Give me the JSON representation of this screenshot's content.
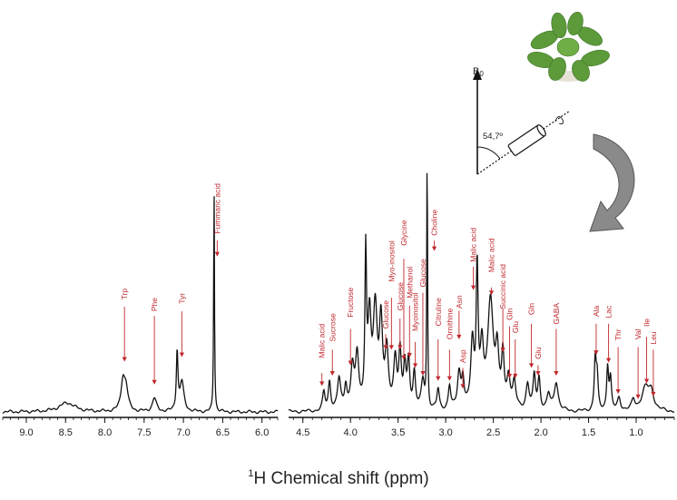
{
  "figure": {
    "xlabel_sup": "1",
    "xlabel_main": "H Chemical shift (ppm)",
    "b0_main": "B",
    "b0_sub": "0",
    "angle": "54,7º",
    "colors": {
      "spectrum": "#111111",
      "annotation": "#c0282d",
      "arrow_fill": "#8a8a8a",
      "leaf": "#5c9a3a"
    }
  },
  "chart_data": [
    {
      "type": "line",
      "panel": "aromatic",
      "title": "",
      "xlabel": "",
      "ylabel": "",
      "xlim": [
        9.3,
        5.8
      ],
      "reversed_x": true,
      "grid": false,
      "x_ticks": [
        "9.0",
        "8.5",
        "8.0",
        "7.5",
        "7.0",
        "6.5",
        "6.0"
      ],
      "peaks": [
        {
          "ppm": 8.48,
          "height": 0.04,
          "width": 0.12
        },
        {
          "ppm": 7.77,
          "height": 0.13,
          "width": 0.03
        },
        {
          "ppm": 7.73,
          "height": 0.09,
          "width": 0.03
        },
        {
          "ppm": 7.37,
          "height": 0.06,
          "width": 0.03
        },
        {
          "ppm": 7.08,
          "height": 0.26,
          "width": 0.012
        },
        {
          "ppm": 7.02,
          "height": 0.13,
          "width": 0.03
        },
        {
          "ppm": 6.61,
          "height": 1.0,
          "width": 0.006
        }
      ],
      "annotations": [
        {
          "label": "Trp",
          "ppm": 7.75,
          "text_top": 0.54,
          "arrow_top": 0.46,
          "arrow_bottom": 0.22
        },
        {
          "label": "Phe",
          "ppm": 7.37,
          "text_top": 0.5,
          "arrow_top": 0.42,
          "arrow_bottom": 0.12
        },
        {
          "label": "Tyr",
          "ppm": 7.02,
          "text_top": 0.52,
          "arrow_top": 0.44,
          "arrow_bottom": 0.24
        },
        {
          "label": "Fummaric acid",
          "ppm": 6.57,
          "text_top": 1.0,
          "arrow_top": 0.75,
          "arrow_bottom": 0.68
        }
      ]
    },
    {
      "type": "line",
      "panel": "aliphatic",
      "title": "",
      "xlabel": "",
      "ylabel": "",
      "xlim": [
        4.65,
        0.6
      ],
      "reversed_x": true,
      "grid": false,
      "x_ticks": [
        "4.5",
        "4.0",
        "3.5",
        "3.0",
        "2.5",
        "2.0",
        "1.5",
        "1.0"
      ],
      "peaks": [
        {
          "ppm": 4.28,
          "height": 0.07,
          "width": 0.015
        },
        {
          "ppm": 4.22,
          "height": 0.11,
          "width": 0.015
        },
        {
          "ppm": 4.12,
          "height": 0.12,
          "width": 0.02
        },
        {
          "ppm": 4.05,
          "height": 0.09,
          "width": 0.015
        },
        {
          "ppm": 3.98,
          "height": 0.16,
          "width": 0.02
        },
        {
          "ppm": 3.93,
          "height": 0.2,
          "width": 0.02
        },
        {
          "ppm": 3.84,
          "height": 0.58,
          "width": 0.01
        },
        {
          "ppm": 3.8,
          "height": 0.33,
          "width": 0.02
        },
        {
          "ppm": 3.74,
          "height": 0.37,
          "width": 0.025
        },
        {
          "ppm": 3.68,
          "height": 0.32,
          "width": 0.02
        },
        {
          "ppm": 3.62,
          "height": 0.21,
          "width": 0.02
        },
        {
          "ppm": 3.53,
          "height": 0.19,
          "width": 0.02
        },
        {
          "ppm": 3.48,
          "height": 0.21,
          "width": 0.015
        },
        {
          "ppm": 3.43,
          "height": 0.16,
          "width": 0.015
        },
        {
          "ppm": 3.39,
          "height": 0.18,
          "width": 0.015
        },
        {
          "ppm": 3.33,
          "height": 0.14,
          "width": 0.015
        },
        {
          "ppm": 3.24,
          "height": 0.11,
          "width": 0.02
        },
        {
          "ppm": 3.195,
          "height": 1.0,
          "width": 0.005
        },
        {
          "ppm": 3.08,
          "height": 0.08,
          "width": 0.015
        },
        {
          "ppm": 2.96,
          "height": 0.09,
          "width": 0.015
        },
        {
          "ppm": 2.86,
          "height": 0.14,
          "width": 0.02
        },
        {
          "ppm": 2.82,
          "height": 0.11,
          "width": 0.015
        },
        {
          "ppm": 2.72,
          "height": 0.25,
          "width": 0.02
        },
        {
          "ppm": 2.67,
          "height": 0.53,
          "width": 0.012
        },
        {
          "ppm": 2.62,
          "height": 0.22,
          "width": 0.02
        },
        {
          "ppm": 2.53,
          "height": 0.42,
          "width": 0.035
        },
        {
          "ppm": 2.46,
          "height": 0.2,
          "width": 0.02
        },
        {
          "ppm": 2.4,
          "height": 0.2,
          "width": 0.015
        },
        {
          "ppm": 2.34,
          "height": 0.12,
          "width": 0.02
        },
        {
          "ppm": 2.28,
          "height": 0.1,
          "width": 0.02
        },
        {
          "ppm": 2.14,
          "height": 0.1,
          "width": 0.02
        },
        {
          "ppm": 2.07,
          "height": 0.13,
          "width": 0.015
        },
        {
          "ppm": 2.02,
          "height": 0.12,
          "width": 0.015
        },
        {
          "ppm": 1.92,
          "height": 0.06,
          "width": 0.02
        },
        {
          "ppm": 1.84,
          "height": 0.11,
          "width": 0.025
        },
        {
          "ppm": 1.43,
          "height": 0.2,
          "width": 0.012
        },
        {
          "ppm": 1.41,
          "height": 0.12,
          "width": 0.012
        },
        {
          "ppm": 1.3,
          "height": 0.17,
          "width": 0.012
        },
        {
          "ppm": 1.27,
          "height": 0.12,
          "width": 0.012
        },
        {
          "ppm": 1.18,
          "height": 0.05,
          "width": 0.02
        },
        {
          "ppm": 1.03,
          "height": 0.04,
          "width": 0.02
        },
        {
          "ppm": 0.9,
          "height": 0.09,
          "width": 0.05
        },
        {
          "ppm": 0.84,
          "height": 0.06,
          "width": 0.03
        }
      ],
      "annotations": [
        {
          "label": "Malic acid",
          "ppm": 4.3,
          "text_top": 0.34,
          "arrow_top": 0.15,
          "arrow_bottom": 0.1
        },
        {
          "label": "Sucrose",
          "ppm": 4.19,
          "text_top": 0.38,
          "arrow_top": 0.24,
          "arrow_bottom": 0.14
        },
        {
          "label": "Fructose",
          "ppm": 4.0,
          "text_top": 0.48,
          "arrow_top": 0.32,
          "arrow_bottom": 0.18
        },
        {
          "label": "Glucose",
          "ppm": 3.63,
          "text_top": 0.43,
          "arrow_top": 0.3,
          "arrow_bottom": 0.24
        },
        {
          "label": "Myo-inositol",
          "ppm": 3.57,
          "text_top": 0.66,
          "arrow_top": 0.44,
          "arrow_bottom": 0.24
        },
        {
          "label": "Glucose",
          "ppm": 3.48,
          "text_top": 0.5,
          "arrow_top": 0.36,
          "arrow_bottom": 0.24
        },
        {
          "label": "Glycine",
          "ppm": 3.44,
          "text_top": 0.74,
          "arrow_top": 0.59,
          "arrow_bottom": 0.2
        },
        {
          "label": "Methanol",
          "ppm": 3.38,
          "text_top": 0.56,
          "arrow_top": 0.41,
          "arrow_bottom": 0.21
        },
        {
          "label": "Myoinositol",
          "ppm": 3.32,
          "text_top": 0.46,
          "arrow_top": 0.27,
          "arrow_bottom": 0.17
        },
        {
          "label": "Glucose",
          "ppm": 3.24,
          "text_top": 0.59,
          "arrow_top": 0.46,
          "arrow_bottom": 0.14
        },
        {
          "label": "Choline",
          "ppm": 3.12,
          "text_top": 0.78,
          "arrow_top": 0.66,
          "arrow_bottom": 0.62
        },
        {
          "label": "Citruline",
          "ppm": 3.08,
          "text_top": 0.44,
          "arrow_top": 0.28,
          "arrow_bottom": 0.12
        },
        {
          "label": "Ornithine",
          "ppm": 2.96,
          "text_top": 0.4,
          "arrow_top": 0.24,
          "arrow_bottom": 0.12
        },
        {
          "label": "Asp",
          "ppm": 2.82,
          "text_top": 0.24,
          "arrow_top": 0.17,
          "arrow_bottom": 0.09
        },
        {
          "label": "Asn",
          "ppm": 2.86,
          "text_top": 0.45,
          "arrow_top": 0.39,
          "arrow_bottom": 0.28
        },
        {
          "label": "Malic acid",
          "ppm": 2.71,
          "text_top": 0.71,
          "arrow_top": 0.56,
          "arrow_bottom": 0.47
        },
        {
          "label": "Malic acid",
          "ppm": 2.52,
          "text_top": 0.67,
          "arrow_top": 0.48,
          "arrow_bottom": 0.45
        },
        {
          "label": "Succinic acid",
          "ppm": 2.4,
          "text_top": 0.57,
          "arrow_top": 0.4,
          "arrow_bottom": 0.23
        },
        {
          "label": "Gln",
          "ppm": 2.33,
          "text_top": 0.4,
          "arrow_top": 0.33,
          "arrow_bottom": 0.13
        },
        {
          "label": "Glu",
          "ppm": 2.27,
          "text_top": 0.35,
          "arrow_top": 0.28,
          "arrow_bottom": 0.13
        },
        {
          "label": "Gln",
          "ppm": 2.1,
          "text_top": 0.42,
          "arrow_top": 0.34,
          "arrow_bottom": 0.17
        },
        {
          "label": "Glu",
          "ppm": 2.03,
          "text_top": 0.25,
          "arrow_top": 0.18,
          "arrow_bottom": 0.14
        },
        {
          "label": "GABA",
          "ppm": 1.84,
          "text_top": 0.42,
          "arrow_top": 0.32,
          "arrow_bottom": 0.14
        },
        {
          "label": "Ala",
          "ppm": 1.42,
          "text_top": 0.41,
          "arrow_top": 0.34,
          "arrow_bottom": 0.22
        },
        {
          "label": "Lac",
          "ppm": 1.29,
          "text_top": 0.41,
          "arrow_top": 0.34,
          "arrow_bottom": 0.19
        },
        {
          "label": "Thr",
          "ppm": 1.19,
          "text_top": 0.32,
          "arrow_top": 0.25,
          "arrow_bottom": 0.07
        },
        {
          "label": "Val",
          "ppm": 0.98,
          "text_top": 0.32,
          "arrow_top": 0.25,
          "arrow_bottom": 0.05
        },
        {
          "label": "Ile",
          "ppm": 0.89,
          "text_top": 0.36,
          "arrow_top": 0.29,
          "arrow_bottom": 0.11
        },
        {
          "label": "Leu",
          "ppm": 0.82,
          "text_top": 0.31,
          "arrow_top": 0.24,
          "arrow_bottom": 0.06
        }
      ]
    }
  ]
}
